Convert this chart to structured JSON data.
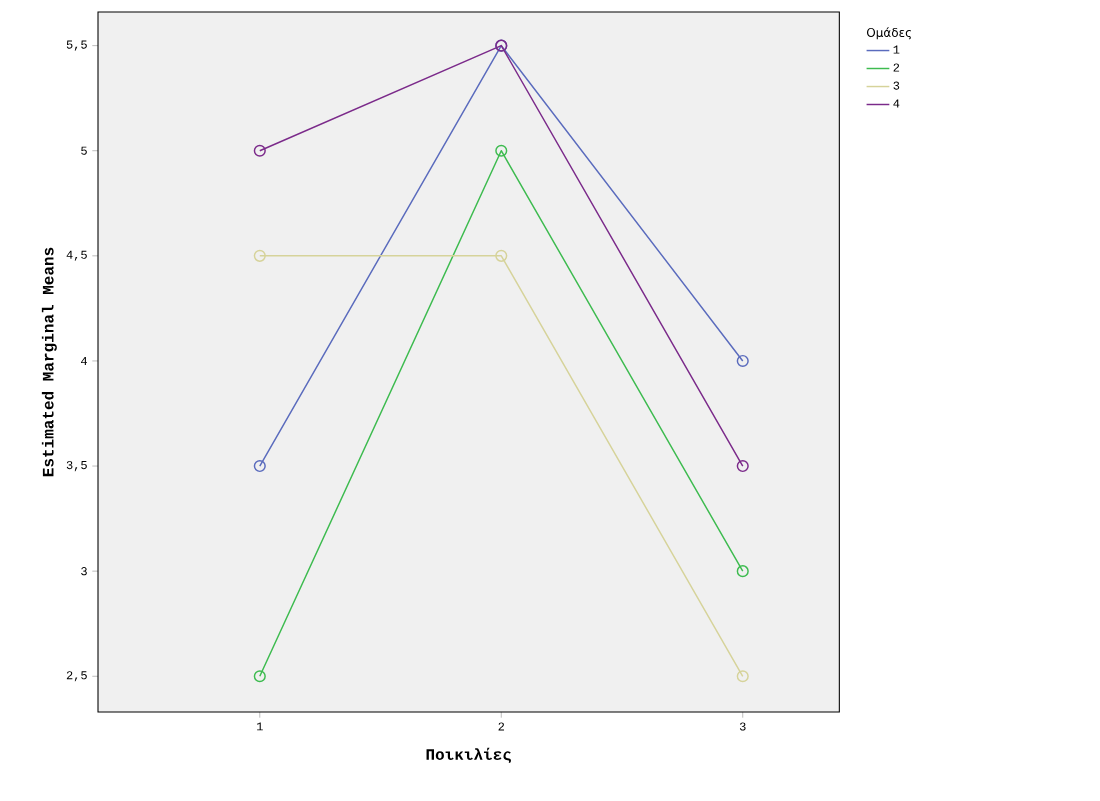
{
  "chart_data": {
    "type": "line",
    "xlabel": "Ποικιλίες",
    "ylabel": "Estimated Marginal Means",
    "legend_title": "Ομάδες",
    "x": [
      1,
      2,
      3
    ],
    "xlim": [
      0.33,
      3.4
    ],
    "xticks": [
      1,
      2,
      3
    ],
    "ylim": [
      2.33,
      5.66
    ],
    "yticks": [
      {
        "value": 2.5,
        "label": "2,5"
      },
      3,
      {
        "value": 3.5,
        "label": "3,5"
      },
      4,
      {
        "value": 4.5,
        "label": "4,5"
      },
      5,
      {
        "value": 5.5,
        "label": "5,5"
      }
    ],
    "series": [
      {
        "name": "1",
        "color": "#5a6bbd",
        "values": [
          3.5,
          5.5,
          4
        ]
      },
      {
        "name": "2",
        "color": "#3dbb4f",
        "values": [
          2.5,
          5,
          3
        ]
      },
      {
        "name": "3",
        "color": "#d6d39a",
        "values": [
          4.5,
          4.5,
          2.5
        ]
      },
      {
        "name": "4",
        "color": "#7b2a8a",
        "values": [
          5,
          5.5,
          3.5
        ]
      }
    ],
    "grid": false,
    "legend": "top right",
    "marker": "circle",
    "line_style": "solid"
  }
}
